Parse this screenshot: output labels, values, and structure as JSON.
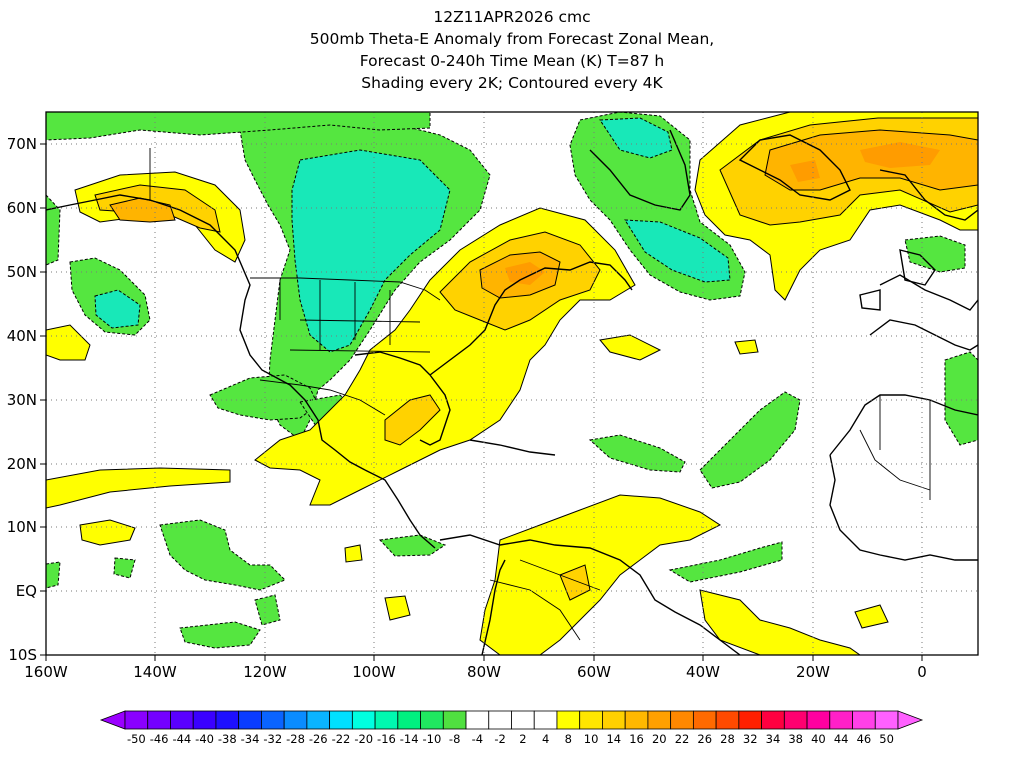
{
  "title": {
    "line1": "12Z11APR2026 cmc",
    "line2": "500mb Theta-E Anomaly from Forecast Zonal Mean,",
    "line3": "Forecast 0-240h Time Mean (K) T=87 h",
    "line4": "Shading every 2K; Contoured every 4K"
  },
  "axes": {
    "lat_labels": [
      "70N",
      "60N",
      "50N",
      "40N",
      "30N",
      "20N",
      "10N",
      "EQ",
      "10S"
    ],
    "lon_labels": [
      "160W",
      "140W",
      "120W",
      "100W",
      "80W",
      "60W",
      "40W",
      "20W",
      "0"
    ]
  },
  "colorbar": {
    "labels": [
      "-50",
      "-46",
      "-44",
      "-40",
      "-38",
      "-34",
      "-32",
      "-28",
      "-26",
      "-22",
      "-20",
      "-16",
      "-14",
      "-10",
      "-8",
      "-4",
      "-2",
      "2",
      "4",
      "8",
      "10",
      "14",
      "16",
      "20",
      "22",
      "26",
      "28",
      "32",
      "34",
      "38",
      "40",
      "44",
      "46",
      "50"
    ],
    "colors": [
      "#8a00ff",
      "#7400ff",
      "#5a00ff",
      "#3a00ff",
      "#1e10ff",
      "#0a3cff",
      "#0a64ff",
      "#0a8cff",
      "#0ab4ff",
      "#00e0ff",
      "#00ffe0",
      "#00f8b0",
      "#00f080",
      "#20e860",
      "#50e040",
      "#ffffff",
      "#ffffff",
      "#ffffff",
      "#ffffff",
      "#ffff00",
      "#ffe600",
      "#ffd000",
      "#ffb800",
      "#ffa000",
      "#ff8800",
      "#ff6a00",
      "#ff4a00",
      "#ff2000",
      "#ff0040",
      "#ff0070",
      "#ff00a0",
      "#ff20c8",
      "#ff40e8",
      "#ff60ff"
    ]
  },
  "palette": {
    "green": "#55e640",
    "cyan": "#18e8b8",
    "yellow": "#ffff00",
    "gold": "#ffd200",
    "orange": "#ffb400",
    "deep_orange": "#ff9c00"
  }
}
